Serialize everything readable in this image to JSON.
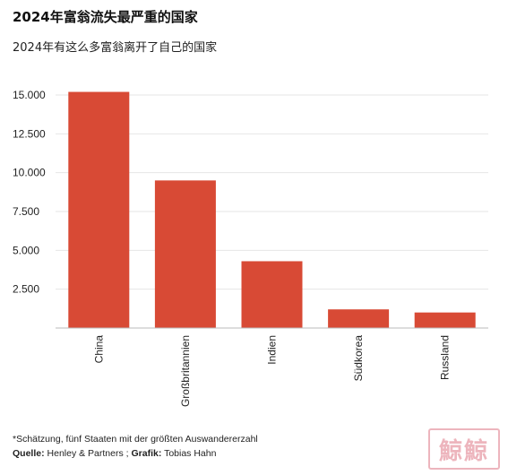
{
  "title": "2024年富翁流失最严重的国家",
  "subtitle": "2024年有这么多富翁离开了自己的国家",
  "footnote": "*Schätzung, fünf Staaten mit der größten Auswandererzahl",
  "source": {
    "label": "Quelle:",
    "value": "Henley & Partners",
    "separator": ";",
    "graphic_label": "Grafik:",
    "graphic_value": "Tobias Hahn"
  },
  "stamp_text": "鯨鯨",
  "colors": {
    "bar": "#d84a35",
    "grid": "#e6e6e6",
    "axis": "#bbbbbb"
  },
  "chart_data": {
    "type": "bar",
    "categories": [
      "China",
      "Großbritannien",
      "Indien",
      "Südkorea",
      "Russland"
    ],
    "values": [
      15200,
      9500,
      4300,
      1200,
      1000
    ],
    "yticks": [
      2500,
      5000,
      7500,
      10000,
      12500,
      15000
    ],
    "ytick_labels": [
      "2.500",
      "5.000",
      "7.500",
      "10.000",
      "12.500",
      "15.000"
    ],
    "ylim": [
      0,
      15000
    ],
    "grid": true,
    "xlabel": "",
    "ylabel": ""
  }
}
